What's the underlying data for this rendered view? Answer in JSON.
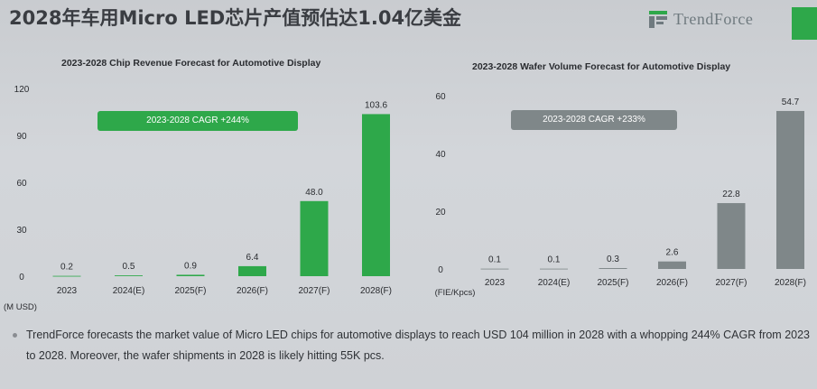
{
  "page": {
    "title": "2028年车用Micro LED芯片产值预估达1.04亿美金",
    "brand": "TrendForce",
    "colors": {
      "green": "#2ea84a",
      "gray": "#7f8789",
      "accent": "#2ea84a"
    }
  },
  "chart_data": [
    {
      "type": "bar",
      "title": "2023-2028 Chip Revenue Forecast for Automotive Display",
      "unit_label": "(M USD)",
      "categories": [
        "2023",
        "2024(E)",
        "2025(F)",
        "2026(F)",
        "2027(F)",
        "2028(F)"
      ],
      "values": [
        0.2,
        0.5,
        0.9,
        6.4,
        48.0,
        103.6
      ],
      "value_labels": [
        "0.2",
        "0.5",
        "0.9",
        "6.4",
        "48.0",
        "103.6"
      ],
      "y_ticks": [
        "120",
        "90",
        "60",
        "30",
        "0"
      ],
      "ylim": [
        0,
        120
      ],
      "annotation": "2023-2028 CAGR +244%",
      "bar_color": "#2ea84a"
    },
    {
      "type": "bar",
      "title": "2023-2028 Wafer Volume Forecast for Automotive Display",
      "unit_label": "(FIE/Kpcs)",
      "categories": [
        "2023",
        "2024(E)",
        "2025(F)",
        "2026(F)",
        "2027(F)",
        "2028(F)"
      ],
      "values": [
        0.1,
        0.1,
        0.3,
        2.6,
        22.8,
        54.7
      ],
      "value_labels": [
        "0.1",
        "0.1",
        "0.3",
        "2.6",
        "22.8",
        "54.7"
      ],
      "y_ticks": [
        "60",
        "40",
        "20",
        "0"
      ],
      "ylim": [
        0,
        60
      ],
      "annotation": "2023-2028 CAGR +233%",
      "bar_color": "#7f8789"
    }
  ],
  "footnote": {
    "line1": "TrendForce forecasts the market value of Micro LED chips for automotive displays to reach USD 104 million in 2028 with a whopping 244% CAGR from 2023",
    "line2": "to 2028. Moreover, the wafer shipments in 2028 is likely hitting 55K pcs."
  }
}
